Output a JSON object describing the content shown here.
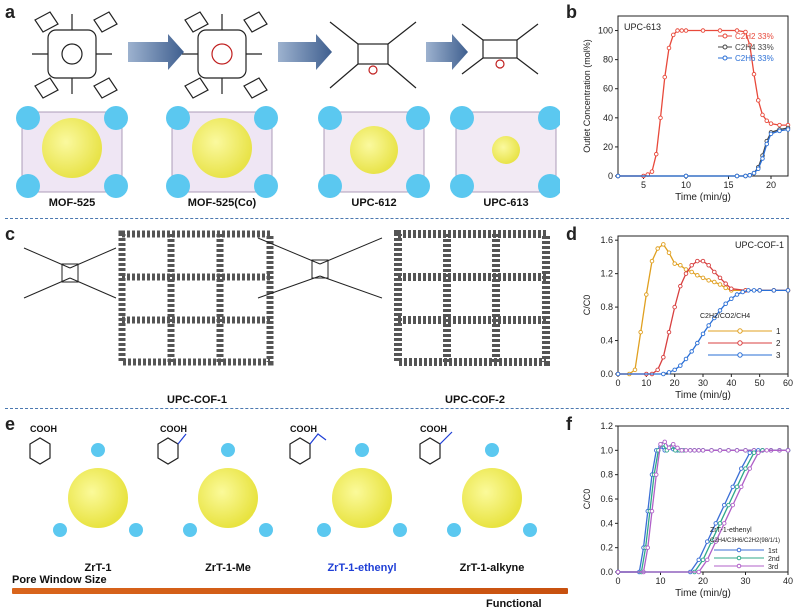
{
  "panels": {
    "a": {
      "letter": "a",
      "labels": [
        "MOF-525",
        "MOF-525(Co)",
        "UPC-612",
        "UPC-613"
      ]
    },
    "b": {
      "letter": "b",
      "inset": "UPC-613",
      "ylabel": "Outlet Concentration (mol%)",
      "xlabel": "Time (min/g)"
    },
    "c": {
      "letter": "c",
      "labels": [
        "UPC-COF-1",
        "UPC-COF-2"
      ]
    },
    "d": {
      "letter": "d",
      "inset": "UPC-COF-1",
      "ylabel": "C/C0",
      "xlabel": "Time (min/g)",
      "legend_title": "C2H2/CO2/CH4"
    },
    "e": {
      "letter": "e",
      "labels": [
        "ZrT-1",
        "ZrT-1-Me",
        "ZrT-1-ethenyl",
        "ZrT-1-alkyne"
      ],
      "cooh": "COOH",
      "pore_window": "Pore Window Size",
      "functional": "Functional"
    },
    "f": {
      "letter": "f",
      "ylabel": "C/C0",
      "xlabel": "Time (min/g)",
      "legend_title1": "ZrT-1-ethenyl",
      "legend_title2": "C2H4/C3H6/C2H2(98/1/1)"
    }
  },
  "colors": {
    "arrow": "#4f6d9a",
    "mof_blue": "#5bc8f0",
    "pore_yellow": "#f4f05a",
    "separator": "#4a78b0",
    "orange": "#d9651c",
    "ethenyl_blue": "#1f3fd6"
  },
  "chart_data": [
    {
      "panel": "b",
      "type": "line",
      "xlabel": "Time (min/g)",
      "ylabel": "Outlet Concentration (mol%)",
      "xlim": [
        2,
        22
      ],
      "ylim": [
        0,
        110
      ],
      "xticks": [
        5,
        10,
        15,
        20
      ],
      "yticks": [
        0,
        20,
        40,
        60,
        80,
        100
      ],
      "legend": "top-right",
      "series": [
        {
          "name": "C2H2 33%",
          "color": "#e8493b",
          "x": [
            2,
            5,
            5.5,
            6,
            6.5,
            7,
            7.5,
            8,
            8.5,
            9,
            9.5,
            10,
            12,
            14,
            16,
            17,
            17.5,
            18,
            18.5,
            19,
            19.5,
            20,
            21,
            22
          ],
          "y": [
            0,
            0,
            1,
            3,
            15,
            40,
            68,
            88,
            97,
            100,
            100,
            100,
            100,
            100,
            100,
            99,
            90,
            70,
            52,
            42,
            38,
            36,
            35,
            35
          ]
        },
        {
          "name": "C2H4 33%",
          "color": "#444444",
          "x": [
            2,
            10,
            16,
            17,
            17.5,
            18,
            18.5,
            19,
            19.5,
            20,
            21,
            22
          ],
          "y": [
            0,
            0,
            0,
            0,
            0.5,
            2,
            6,
            14,
            24,
            30,
            32,
            33
          ]
        },
        {
          "name": "C2H6 33%",
          "color": "#2a6fd6",
          "x": [
            2,
            10,
            16,
            17,
            17.5,
            18,
            18.5,
            19,
            19.5,
            20,
            21,
            22
          ],
          "y": [
            0,
            0,
            0,
            0,
            0.5,
            2,
            5,
            12,
            22,
            29,
            31,
            32
          ]
        }
      ]
    },
    {
      "panel": "d",
      "type": "line",
      "xlabel": "Time (min/g)",
      "ylabel": "C/C0",
      "xlim": [
        0,
        60
      ],
      "ylim": [
        0,
        1.65
      ],
      "xticks": [
        0,
        10,
        20,
        30,
        40,
        50,
        60
      ],
      "yticks": [
        0.0,
        0.4,
        0.8,
        1.2,
        1.6
      ],
      "legend": "bottom-right",
      "series": [
        {
          "name": "1",
          "color": "#e0a020",
          "x": [
            0,
            4,
            6,
            8,
            10,
            12,
            14,
            16,
            18,
            20,
            22,
            24,
            26,
            28,
            30,
            32,
            34,
            36,
            38,
            40,
            45,
            50,
            55,
            60
          ],
          "y": [
            0,
            0,
            0.05,
            0.5,
            0.95,
            1.35,
            1.5,
            1.55,
            1.45,
            1.32,
            1.3,
            1.25,
            1.22,
            1.18,
            1.15,
            1.12,
            1.1,
            1.07,
            1.03,
            1.0,
            1.0,
            1.0,
            1.0,
            1.0
          ]
        },
        {
          "name": "2",
          "color": "#d84040",
          "x": [
            0,
            10,
            12,
            14,
            16,
            18,
            20,
            22,
            24,
            26,
            28,
            30,
            32,
            34,
            36,
            38,
            40,
            45,
            50,
            55,
            60
          ],
          "y": [
            0,
            0,
            0,
            0.05,
            0.2,
            0.5,
            0.8,
            1.05,
            1.2,
            1.3,
            1.35,
            1.35,
            1.3,
            1.22,
            1.15,
            1.08,
            1.02,
            1.0,
            1.0,
            1.0,
            1.0
          ]
        },
        {
          "name": "3",
          "color": "#2a6fd6",
          "x": [
            0,
            16,
            18,
            20,
            22,
            24,
            26,
            28,
            30,
            32,
            34,
            36,
            38,
            40,
            42,
            44,
            46,
            48,
            50,
            55,
            60
          ],
          "y": [
            0,
            0,
            0.02,
            0.05,
            0.1,
            0.18,
            0.27,
            0.37,
            0.48,
            0.58,
            0.67,
            0.76,
            0.84,
            0.9,
            0.95,
            0.98,
            1.0,
            1.0,
            1.0,
            1.0,
            1.0
          ]
        }
      ]
    },
    {
      "panel": "f",
      "type": "line",
      "xlabel": "Time (min/g)",
      "ylabel": "C/C0",
      "xlim": [
        0,
        40
      ],
      "ylim": [
        0,
        1.2
      ],
      "xticks": [
        0,
        10,
        20,
        30,
        40
      ],
      "yticks": [
        0.0,
        0.2,
        0.4,
        0.6,
        0.8,
        1.0,
        1.2
      ],
      "legend": "bottom-right",
      "series": [
        {
          "name": "1st",
          "color": "#3b6fd6",
          "x": [
            0,
            5,
            6,
            7,
            8,
            9,
            10,
            11,
            12,
            13,
            14,
            15,
            17,
            18,
            19,
            20,
            22,
            24,
            26,
            28,
            30,
            32,
            34,
            36,
            38,
            40
          ],
          "y": [
            0,
            0,
            0.2,
            0.5,
            0.8,
            1.0,
            1.03,
            1.0,
            1.02,
            1.01,
            1.0,
            1.0,
            1.0,
            1.0,
            1.0,
            1.0,
            1.0,
            1.0,
            1.0,
            1.0,
            1.0,
            1.0,
            1.0,
            1.0,
            1.0,
            1.0
          ]
        },
        {
          "name": "2nd",
          "color": "#2fa88a",
          "x": [
            0,
            5.5,
            6.5,
            7.5,
            8.5,
            9.5,
            10.5,
            11.5,
            12.5,
            13.5,
            14.5,
            15.5,
            17,
            18,
            19,
            20,
            22,
            24,
            26,
            28,
            30,
            32,
            34,
            36,
            38,
            40
          ],
          "y": [
            0,
            0,
            0.2,
            0.5,
            0.8,
            1.0,
            1.05,
            1.0,
            1.03,
            1.0,
            1.0,
            1.0,
            1.0,
            1.0,
            1.0,
            1.0,
            1.0,
            1.0,
            1.0,
            1.0,
            1.0,
            1.0,
            1.0,
            1.0,
            1.0,
            1.0
          ]
        },
        {
          "name": "3rd",
          "color": "#b060c8",
          "x": [
            0,
            6,
            7,
            8,
            9,
            10,
            11,
            12,
            13,
            14,
            15,
            16,
            17,
            18,
            19,
            20,
            22,
            24,
            26,
            28,
            30,
            32,
            34,
            36,
            38,
            40
          ],
          "y": [
            0,
            0,
            0.2,
            0.5,
            0.8,
            1.05,
            1.07,
            1.02,
            1.05,
            1.02,
            1.0,
            1.0,
            1.0,
            1.0,
            1.0,
            1.0,
            1.0,
            1.0,
            1.0,
            1.0,
            1.0,
            1.0,
            1.0,
            1.0,
            1.0,
            1.0
          ]
        },
        {
          "name": "C2H4 1st",
          "color": "#3b6fd6",
          "x": [
            0,
            17,
            19,
            21,
            23,
            25,
            27,
            29,
            31,
            33,
            40
          ],
          "y": [
            0,
            0,
            0.1,
            0.25,
            0.4,
            0.55,
            0.7,
            0.85,
            0.98,
            1.0,
            1.0
          ]
        },
        {
          "name": "C2H4 2nd",
          "color": "#2fa88a",
          "x": [
            0,
            18,
            20,
            22,
            24,
            26,
            28,
            30,
            32,
            34,
            40
          ],
          "y": [
            0,
            0,
            0.1,
            0.25,
            0.4,
            0.55,
            0.7,
            0.85,
            0.98,
            1.0,
            1.0
          ]
        },
        {
          "name": "C2H4 3rd",
          "color": "#b060c8",
          "x": [
            0,
            19,
            21,
            23,
            25,
            27,
            29,
            31,
            33,
            35,
            40
          ],
          "y": [
            0,
            0,
            0.1,
            0.25,
            0.4,
            0.55,
            0.7,
            0.85,
            0.98,
            1.0,
            1.0
          ]
        }
      ]
    }
  ]
}
